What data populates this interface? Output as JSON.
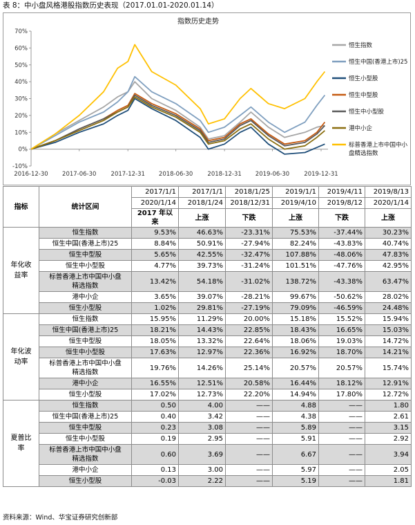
{
  "caption": "表 8：中小盘风格港股指数历史表现（2017.01.01-2020.01.14）",
  "source": "资料来源：Wind、华宝证券研究创新部",
  "chart_data": {
    "type": "line",
    "title": "指数历史走势",
    "ylim": [
      -10,
      70
    ],
    "yticks": [
      "-10%",
      "0%",
      "10%",
      "20%",
      "30%",
      "40%",
      "50%",
      "60%",
      "70%"
    ],
    "xticks": [
      "2016-12-30",
      "2017-06-30",
      "2017-12-31",
      "2018-06-30",
      "2018-12-31",
      "2019-06-30",
      "2019-12-31"
    ],
    "x": [
      "2016-12-30",
      "2017-03-31",
      "2017-06-30",
      "2017-09-30",
      "2017-11-22",
      "2017-12-31",
      "2018-01-26",
      "2018-03-31",
      "2018-06-30",
      "2018-09-30",
      "2018-10-31",
      "2018-12-31",
      "2019-02-28",
      "2019-04-10",
      "2019-06-15",
      "2019-08-15",
      "2019-10-31",
      "2019-12-15",
      "2020-01-14"
    ],
    "series": [
      {
        "name": "恒生指数",
        "color": "#a6a6a6",
        "values": [
          0,
          9,
          17,
          25,
          31,
          34,
          40,
          30,
          23,
          13,
          6,
          8,
          16,
          22,
          13,
          7,
          10,
          13,
          14
        ]
      },
      {
        "name": "恒生中国(香港上市)25",
        "color": "#7f9fbf",
        "values": [
          0,
          8,
          16,
          22,
          28,
          34,
          43,
          34,
          27,
          17,
          10,
          13,
          20,
          25,
          16,
          10,
          16,
          26,
          32
        ]
      },
      {
        "name": "恒生小型股",
        "color": "#1f4e79",
        "values": [
          0,
          4,
          10,
          15,
          20,
          23,
          30,
          24,
          17,
          7,
          0,
          3,
          10,
          13,
          3,
          -3,
          -2,
          1,
          3
        ]
      },
      {
        "name": "恒生中型股",
        "color": "#c55a11",
        "values": [
          0,
          5,
          12,
          18,
          23,
          26,
          33,
          27,
          21,
          12,
          5,
          7,
          15,
          18,
          9,
          3,
          5,
          10,
          16
        ]
      },
      {
        "name": "恒生中小型股",
        "color": "#595959",
        "values": [
          0,
          5,
          12,
          18,
          22,
          25,
          32,
          26,
          20,
          11,
          4,
          6,
          14,
          17,
          8,
          2,
          4,
          9,
          14
        ]
      },
      {
        "name": "港中小企",
        "color": "#8b6f10",
        "values": [
          0,
          5,
          11,
          17,
          22,
          25,
          31,
          25,
          19,
          10,
          3,
          5,
          12,
          15,
          6,
          0,
          2,
          7,
          11
        ]
      },
      {
        "name": "标普香港上市中国中小盘精选指数",
        "color": "#ffc000",
        "values": [
          0,
          9,
          20,
          34,
          48,
          52,
          62,
          46,
          38,
          24,
          15,
          18,
          30,
          36,
          27,
          24,
          30,
          40,
          46
        ]
      }
    ],
    "legend_position": "right"
  },
  "table": {
    "header_periods": [
      {
        "start": "2017/1/1",
        "end": "2020/1/14",
        "trend": "2017 年以来"
      },
      {
        "start": "2017/1/1",
        "end": "2018/1/24",
        "trend": "上涨"
      },
      {
        "start": "2018/1/25",
        "end": "2018/12/31",
        "trend": "下跌"
      },
      {
        "start": "2019/1/1",
        "end": "2019/4/10",
        "trend": "上涨"
      },
      {
        "start": "2019/4/11",
        "end": "2019/8/12",
        "trend": "下跌"
      },
      {
        "start": "2019/8/13",
        "end": "2020/1/14",
        "trend": "上涨"
      }
    ],
    "col_indicator": "指标",
    "col_range": "统计区间",
    "groups": [
      {
        "label": [
          "年化收",
          "益率"
        ],
        "rows": [
          {
            "name": [
              "恒生指数"
            ],
            "values": [
              "9.53%",
              "46.63%",
              "-23.31%",
              "75.53%",
              "-37.44%",
              "30.23%"
            ],
            "gray": true
          },
          {
            "name": [
              "恒生中国(香港上市)25"
            ],
            "values": [
              "8.84%",
              "50.91%",
              "-27.94%",
              "82.24%",
              "-43.83%",
              "40.74%"
            ],
            "gray": false
          },
          {
            "name": [
              "恒生中型股"
            ],
            "values": [
              "5.65%",
              "42.55%",
              "-32.47%",
              "107.88%",
              "-48.06%",
              "47.83%"
            ],
            "gray": true
          },
          {
            "name": [
              "恒生中小型股"
            ],
            "values": [
              "4.77%",
              "39.73%",
              "-31.24%",
              "101.51%",
              "-47.76%",
              "42.95%"
            ],
            "gray": false
          },
          {
            "name": [
              "标普香港上市中国中小盘",
              "精选指数"
            ],
            "values": [
              "13.42%",
              "54.18%",
              "-31.02%",
              "138.72%",
              "-43.38%",
              "63.47%"
            ],
            "gray": true
          },
          {
            "name": [
              "港中小企"
            ],
            "values": [
              "3.65%",
              "39.07%",
              "-28.21%",
              "99.67%",
              "-50.62%",
              "28.02%"
            ],
            "gray": false
          },
          {
            "name": [
              "恒生小型股"
            ],
            "values": [
              "1.02%",
              "29.81%",
              "-27.19%",
              "79.09%",
              "-46.59%",
              "24.48%"
            ],
            "gray": true
          }
        ]
      },
      {
        "label": [
          "年化波",
          "动率"
        ],
        "rows": [
          {
            "name": [
              "恒生指数"
            ],
            "values": [
              "15.95%",
              "11.29%",
              "20.00%",
              "15.18%",
              "15.52%",
              "15.94%"
            ],
            "gray": false
          },
          {
            "name": [
              "恒生中国(香港上市)25"
            ],
            "values": [
              "18.21%",
              "14.43%",
              "22.85%",
              "18.43%",
              "16.65%",
              "15.03%"
            ],
            "gray": true
          },
          {
            "name": [
              "恒生中型股"
            ],
            "values": [
              "18.05%",
              "13.32%",
              "22.64%",
              "18.06%",
              "19.03%",
              "14.72%"
            ],
            "gray": false
          },
          {
            "name": [
              "恒生中小型股"
            ],
            "values": [
              "17.63%",
              "12.97%",
              "22.36%",
              "16.92%",
              "18.70%",
              "14.21%"
            ],
            "gray": true
          },
          {
            "name": [
              "标普香港上市中国中小盘",
              "精选指数"
            ],
            "values": [
              "19.76%",
              "14.26%",
              "25.14%",
              "20.57%",
              "20.57%",
              "15.74%"
            ],
            "gray": false
          },
          {
            "name": [
              "港中小企"
            ],
            "values": [
              "16.55%",
              "12.51%",
              "20.58%",
              "16.44%",
              "18.12%",
              "12.91%"
            ],
            "gray": true
          },
          {
            "name": [
              "恒生小型股"
            ],
            "values": [
              "17.02%",
              "12.73%",
              "22.20%",
              "14.94%",
              "17.80%",
              "12.72%"
            ],
            "gray": false
          }
        ]
      },
      {
        "label": [
          "夏普比",
          "率"
        ],
        "rows": [
          {
            "name": [
              "恒生指数"
            ],
            "values": [
              "0.50",
              "4.00",
              "——",
              "4.88",
              "——",
              "1.80"
            ],
            "gray": true
          },
          {
            "name": [
              "恒生中国(香港上市)25"
            ],
            "values": [
              "0.40",
              "3.42",
              "——",
              "4.38",
              "——",
              "2.61"
            ],
            "gray": false
          },
          {
            "name": [
              "恒生中型股"
            ],
            "values": [
              "0.23",
              "3.08",
              "——",
              "5.89",
              "——",
              "3.15"
            ],
            "gray": true
          },
          {
            "name": [
              "恒生中小型股"
            ],
            "values": [
              "0.19",
              "2.95",
              "——",
              "5.91",
              "——",
              "2.92"
            ],
            "gray": false
          },
          {
            "name": [
              "标普香港上市中国中小盘",
              "精选指数"
            ],
            "values": [
              "0.60",
              "3.69",
              "——",
              "6.67",
              "——",
              "3.94"
            ],
            "gray": true
          },
          {
            "name": [
              "港中小企"
            ],
            "values": [
              "0.13",
              "3.00",
              "——",
              "5.97",
              "——",
              "2.05"
            ],
            "gray": false
          },
          {
            "name": [
              "恒生小型股"
            ],
            "values": [
              "-0.03",
              "2.22",
              "——",
              "5.19",
              "——",
              "1.81"
            ],
            "gray": true
          }
        ]
      }
    ]
  }
}
